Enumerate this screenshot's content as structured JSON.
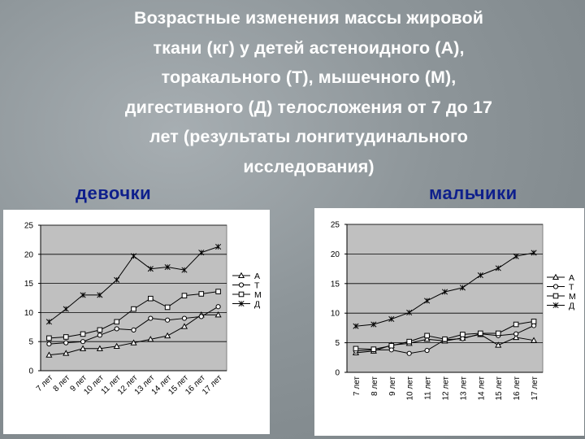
{
  "title": "Возрастные изменения массы жировой ткани (кг) у детей астеноидного (А), торакального (Т), мышечного (М), дигестивного (Д) телосложения от 7 до 17 лет (результаты лонгитудинального исследования)",
  "title_lines": [
    "Возрастные изменения массы жировой",
    "ткани (кг) у детей астеноидного (А),",
    "торакального (Т), мышечного (М),",
    "дигестивного (Д) телосложения от 7 до 17",
    "лет  (результаты лонгитудинального",
    "исследования)"
  ],
  "labels": {
    "girls": "девочки",
    "boys": "мальчики"
  },
  "colors": {
    "plot_bg": "#c0c0c0",
    "line": "#000000",
    "label_blue": "#0e1f8c",
    "title": "#ffffff"
  },
  "chart_data": [
    {
      "type": "line",
      "panel": "girls",
      "categories": [
        "7 лет",
        "8 лет",
        "9 лет",
        "10 лет",
        "11 лет",
        "12 лет",
        "13 лет",
        "14 лет",
        "15 лет",
        "16 лет",
        "17 лет"
      ],
      "yticks": [
        0,
        5,
        10,
        15,
        20,
        25
      ],
      "ylim": [
        0,
        25
      ],
      "grid": true,
      "legend": "right",
      "series": [
        {
          "name": "А",
          "marker": "triangle",
          "values": [
            2.7,
            3.0,
            3.8,
            3.8,
            4.2,
            4.8,
            5.4,
            6.0,
            7.6,
            9.6,
            9.6
          ]
        },
        {
          "name": "Т",
          "marker": "circle",
          "values": [
            4.6,
            4.8,
            5.0,
            6.1,
            7.2,
            7.0,
            9.0,
            8.7,
            9.0,
            9.3,
            11.0
          ]
        },
        {
          "name": "М",
          "marker": "square",
          "values": [
            5.6,
            5.8,
            6.3,
            7.0,
            8.4,
            10.6,
            12.4,
            10.9,
            12.9,
            13.2,
            13.6
          ]
        },
        {
          "name": "Д",
          "marker": "star",
          "values": [
            8.4,
            10.6,
            13.0,
            13.0,
            15.6,
            19.7,
            17.5,
            17.8,
            17.3,
            20.3,
            21.3
          ]
        }
      ]
    },
    {
      "type": "line",
      "panel": "boys",
      "categories": [
        "7 лет",
        "8 лет",
        "9 лет",
        "10 лет",
        "11 лет",
        "12 лет",
        "13 лет",
        "14 лет",
        "15 лет",
        "16 лет",
        "17 лет"
      ],
      "yticks": [
        0,
        5,
        10,
        15,
        20,
        25
      ],
      "ylim": [
        0,
        25
      ],
      "grid": true,
      "legend": "right",
      "series": [
        {
          "name": "А",
          "marker": "triangle",
          "values": [
            3.3,
            3.6,
            4.6,
            4.9,
            5.6,
            5.3,
            5.8,
            6.4,
            4.6,
            5.9,
            5.4
          ]
        },
        {
          "name": "Т",
          "marker": "circle",
          "values": [
            3.6,
            3.8,
            3.8,
            3.2,
            3.7,
            5.5,
            5.7,
            6.5,
            6.2,
            6.5,
            7.9
          ]
        },
        {
          "name": "М",
          "marker": "square",
          "values": [
            4.0,
            3.9,
            4.5,
            5.2,
            6.2,
            5.6,
            6.4,
            6.6,
            6.6,
            8.1,
            8.6
          ]
        },
        {
          "name": "Д",
          "marker": "star",
          "values": [
            7.8,
            8.1,
            9.0,
            10.1,
            12.1,
            13.6,
            14.3,
            16.4,
            17.6,
            19.6,
            20.2
          ]
        }
      ]
    }
  ]
}
